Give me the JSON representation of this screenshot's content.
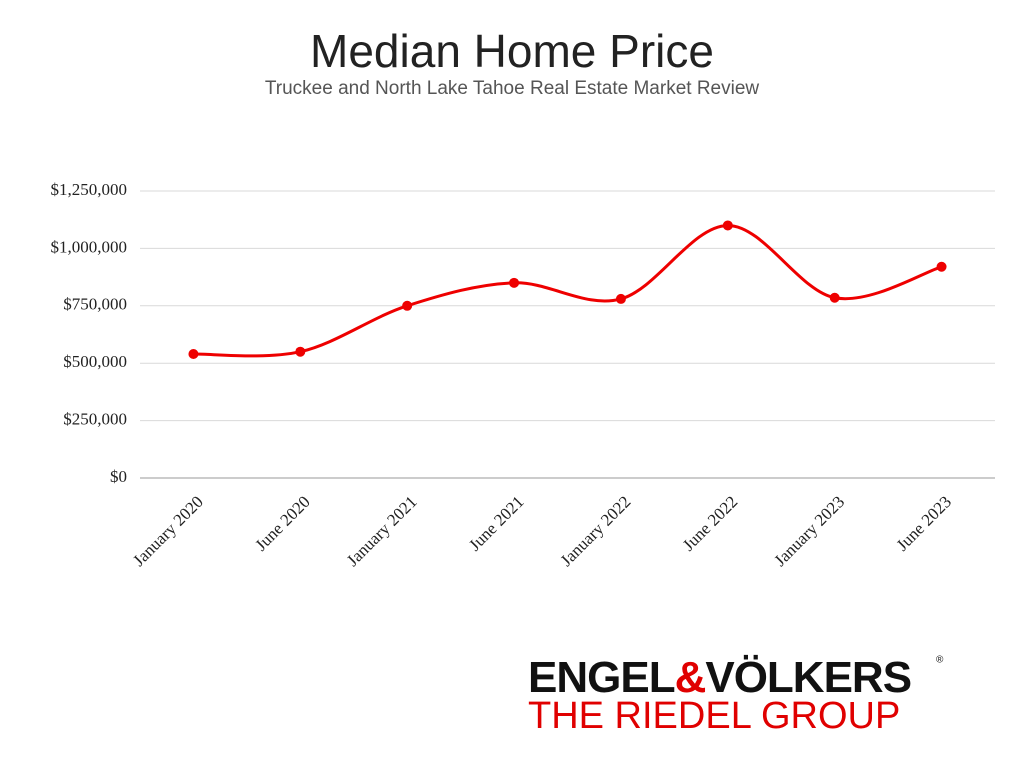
{
  "chart_data": {
    "type": "line",
    "title": "Median Home Price",
    "subtitle": "Truckee and North Lake Tahoe Real Estate Market Review",
    "categories": [
      "January 2020",
      "June 2020",
      "January 2021",
      "June 2021",
      "January 2022",
      "June 2022",
      "January 2023",
      "June 2023"
    ],
    "values": [
      540000,
      550000,
      750000,
      850000,
      780000,
      1100000,
      785000,
      920000
    ],
    "color": "#ee0000",
    "ylim": [
      0,
      1250000
    ],
    "yticks": [
      {
        "value": 0,
        "label": "$0"
      },
      {
        "value": 250000,
        "label": "$250,000"
      },
      {
        "value": 500000,
        "label": "$500,000"
      },
      {
        "value": 750000,
        "label": "$750,000"
      },
      {
        "value": 1000000,
        "label": "$1,000,000"
      },
      {
        "value": 1250000,
        "label": "$1,250,000"
      }
    ],
    "grid": true
  },
  "logo": {
    "brand_left": "ENGEL",
    "ampersand": "&",
    "brand_right": "VÖLKERS",
    "registered": "®",
    "group": "THE RIEDEL GROUP"
  }
}
